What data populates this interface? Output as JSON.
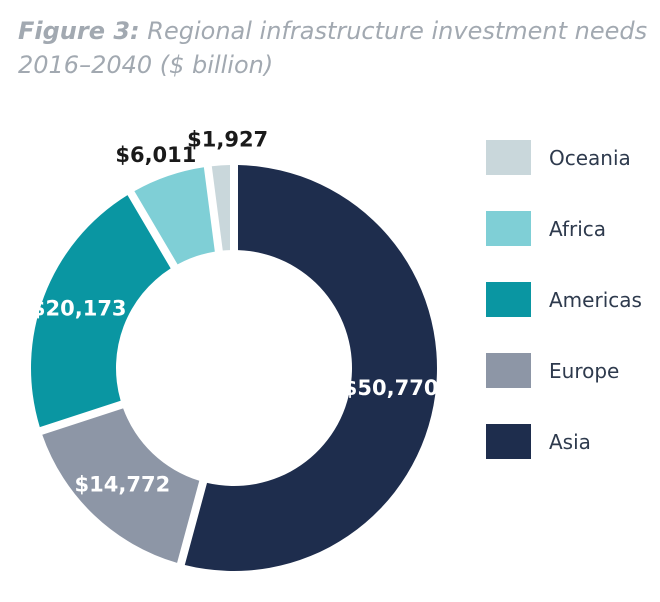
{
  "chart_data": {
    "type": "pie",
    "style": "donut",
    "title_prefix": "Figure 3:",
    "title": "Regional infrastructure investment needs",
    "subtitle": "2016–2040 ($ billion)",
    "slices": [
      {
        "name": "Asia",
        "value": 50770,
        "label": "$50,770",
        "color": "#1e2d4d",
        "label_color": "#ffffff"
      },
      {
        "name": "Europe",
        "value": 14772,
        "label": "$14,772",
        "color": "#8d96a6",
        "label_color": "#ffffff"
      },
      {
        "name": "Americas",
        "value": 20173,
        "label": "$20,173",
        "color": "#0a96a2",
        "label_color": "#ffffff"
      },
      {
        "name": "Africa",
        "value": 6011,
        "label": "$6,011",
        "color": "#7fcfd6",
        "label_color": "#1a1a1a"
      },
      {
        "name": "Oceania",
        "value": 1927,
        "label": "$1,927",
        "color": "#c9d7db",
        "label_color": "#1a1a1a"
      }
    ],
    "legend": [
      "Oceania",
      "Africa",
      "Americas",
      "Europe",
      "Asia"
    ],
    "legend_position": "right"
  }
}
